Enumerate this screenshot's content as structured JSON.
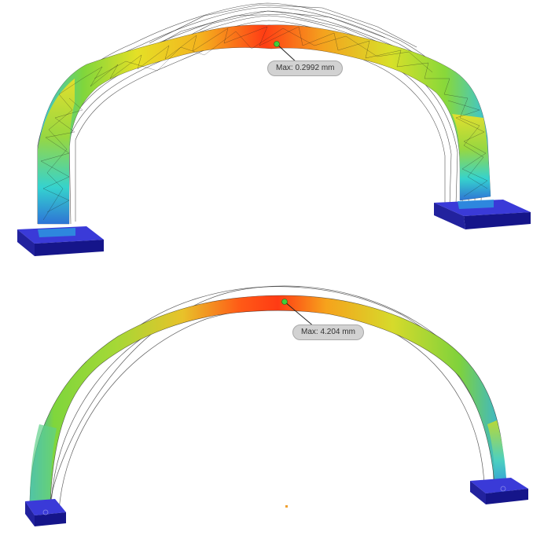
{
  "results": {
    "top_view": {
      "max_label": "Max: 0.2992 mm"
    },
    "bottom_view": {
      "max_label": "Max: 4.204 mm"
    }
  },
  "colors": {
    "low": "#1f7fd8",
    "low_mid": "#34d3d0",
    "mid": "#88d83a",
    "high_mid": "#e8e22a",
    "high": "#ff9a18",
    "max": "#ff3b14",
    "support": "#1c1ca8",
    "probe_marker": "#3fcf3a"
  }
}
